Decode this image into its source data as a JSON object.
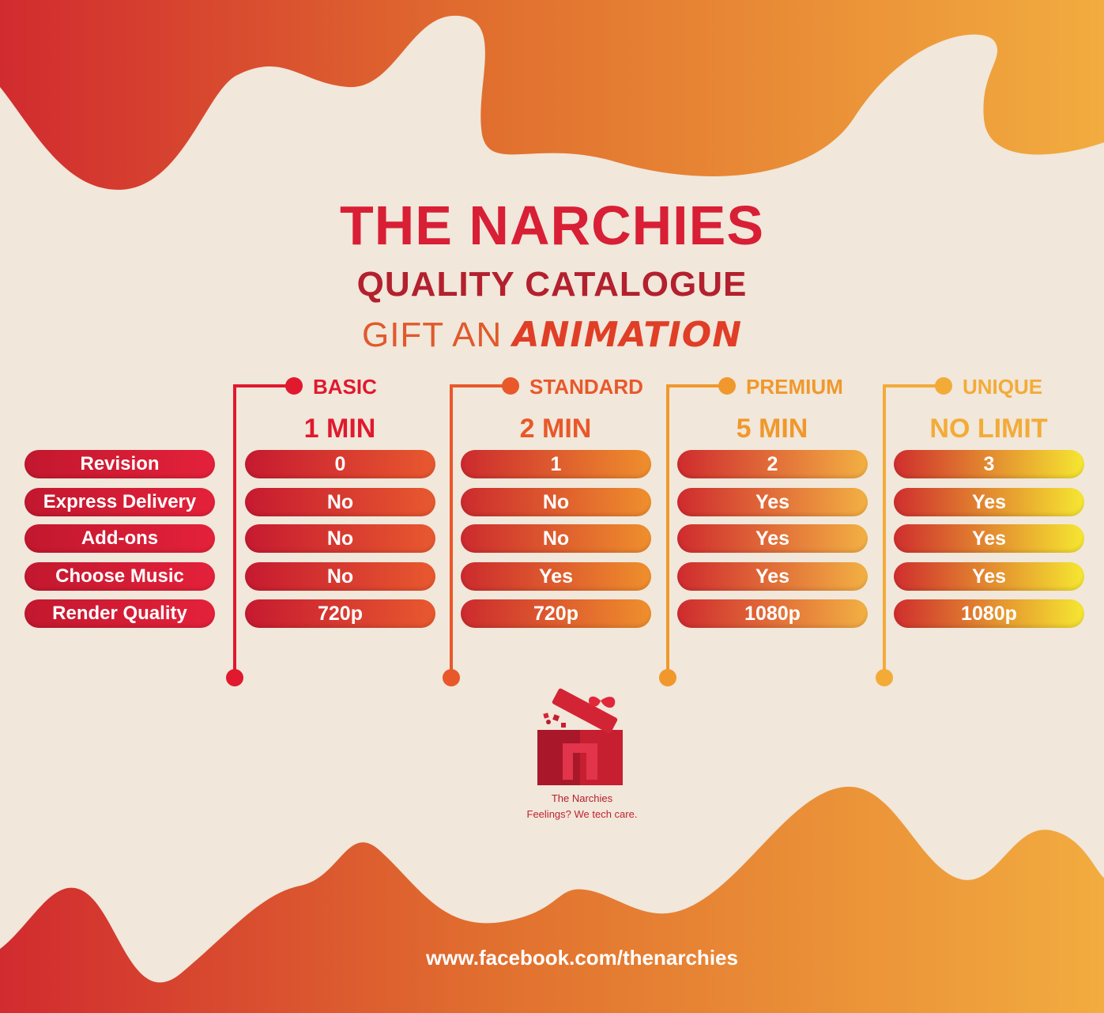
{
  "header": {
    "title": "THE NARCHIES",
    "subtitle": "QUALITY CATALOGUE",
    "tagline_prefix": "GIFT AN",
    "tagline_accent": "ANIMATION"
  },
  "features": [
    "Revision",
    "Express Delivery",
    "Add-ons",
    "Choose Music",
    "Render Quality"
  ],
  "tiers": [
    {
      "name": "BASIC",
      "duration": "1 MIN",
      "values": [
        "0",
        "No",
        "No",
        "No",
        "720p"
      ],
      "color": "#e0192e",
      "grad": [
        "#c61a30",
        "#e8592f"
      ]
    },
    {
      "name": "STANDARD",
      "duration": "2 MIN",
      "values": [
        "1",
        "No",
        "No",
        "Yes",
        "720p"
      ],
      "color": "#e8582a",
      "grad": [
        "#cc2a2e",
        "#ef8f2d"
      ]
    },
    {
      "name": "PREMIUM",
      "duration": "5 MIN",
      "values": [
        "2",
        "Yes",
        "Yes",
        "Yes",
        "1080p"
      ],
      "color": "#f0982c",
      "grad": [
        "#cf2b2e",
        "#f3b043"
      ]
    },
    {
      "name": "UNIQUE",
      "duration": "NO LIMIT",
      "values": [
        "3",
        "Yes",
        "Yes",
        "Yes",
        "1080p"
      ],
      "color": "#f3ab38",
      "grad": [
        "#cf2e2e",
        "#f6e731"
      ]
    }
  ],
  "brand": {
    "logo_icon": "gift-box-n-logo",
    "name": "The Narchies",
    "tagline": "Feelings? We tech care."
  },
  "footer": {
    "url": "www.facebook.com/thenarchies"
  },
  "colors": {
    "primary_red": "#d81f35",
    "orange": "#e8752d",
    "yellow": "#f3ab38",
    "paper": "#f1e7da"
  }
}
